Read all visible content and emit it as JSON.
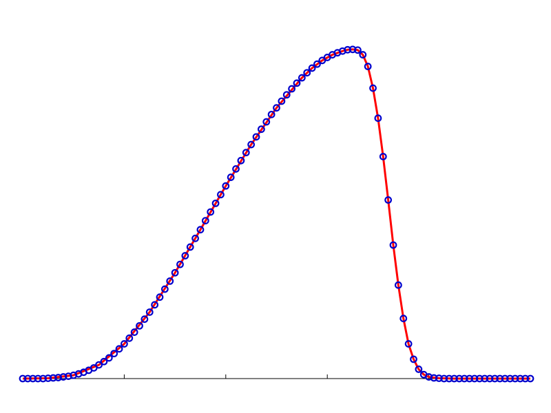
{
  "chart_data": {
    "type": "scatter",
    "title": "",
    "xlabel": "",
    "ylabel": "",
    "xlim": [
      0,
      100
    ],
    "ylim": [
      0,
      1
    ],
    "grid": false,
    "legend": "none",
    "x_ticks": [
      20,
      40,
      60,
      80
    ],
    "series": [
      {
        "style": "markers",
        "marker": "circle",
        "color": "#0000cc",
        "x": [
          0,
          1,
          2,
          3,
          4,
          5,
          6,
          7,
          8,
          9,
          10,
          11,
          12,
          13,
          14,
          15,
          16,
          17,
          18,
          19,
          20,
          21,
          22,
          23,
          24,
          25,
          26,
          27,
          28,
          29,
          30,
          31,
          32,
          33,
          34,
          35,
          36,
          37,
          38,
          39,
          40,
          41,
          42,
          43,
          44,
          45,
          46,
          47,
          48,
          49,
          50,
          51,
          52,
          53,
          54,
          55,
          56,
          57,
          58,
          59,
          60,
          61,
          62,
          63,
          64,
          65,
          66,
          67,
          68,
          69,
          70,
          71,
          72,
          73,
          74,
          75,
          76,
          77,
          78,
          79,
          80,
          81,
          82,
          83,
          84,
          85,
          86,
          87,
          88,
          89,
          90,
          91,
          92,
          93,
          94,
          95,
          96,
          97,
          98,
          99,
          100
        ],
        "y": [
          0,
          0,
          0,
          0,
          0,
          0.001,
          0.002,
          0.003,
          0.005,
          0.007,
          0.01,
          0.014,
          0.019,
          0.025,
          0.032,
          0.041,
          0.051,
          0.062,
          0.075,
          0.089,
          0.104,
          0.121,
          0.139,
          0.158,
          0.178,
          0.199,
          0.221,
          0.244,
          0.268,
          0.292,
          0.317,
          0.342,
          0.368,
          0.394,
          0.42,
          0.446,
          0.473,
          0.499,
          0.525,
          0.551,
          0.577,
          0.603,
          0.628,
          0.653,
          0.677,
          0.701,
          0.724,
          0.747,
          0.769,
          0.791,
          0.811,
          0.831,
          0.85,
          0.868,
          0.885,
          0.901,
          0.916,
          0.93,
          0.942,
          0.953,
          0.962,
          0.97,
          0.976,
          0.981,
          0.985,
          0.986,
          0.984,
          0.97,
          0.935,
          0.87,
          0.78,
          0.665,
          0.535,
          0.4,
          0.28,
          0.18,
          0.104,
          0.058,
          0.028,
          0.012,
          0.005,
          0.002,
          0.001,
          0,
          0,
          0,
          0,
          0,
          0,
          0,
          0,
          0,
          0,
          0,
          0,
          0,
          0,
          0,
          0,
          0,
          0
        ]
      },
      {
        "style": "line",
        "color": "#ff0000",
        "x": [
          0,
          5,
          10,
          15,
          20,
          25,
          30,
          35,
          40,
          45,
          50,
          55,
          57,
          59,
          61,
          63,
          64,
          65,
          66,
          67,
          68,
          69,
          70,
          71,
          72,
          73,
          74,
          75,
          76,
          77,
          78,
          79,
          80,
          82,
          85,
          90,
          95,
          100
        ],
        "y": [
          0,
          0.001,
          0.01,
          0.041,
          0.104,
          0.199,
          0.317,
          0.446,
          0.577,
          0.701,
          0.811,
          0.901,
          0.93,
          0.953,
          0.97,
          0.981,
          0.985,
          0.986,
          0.984,
          0.97,
          0.935,
          0.87,
          0.78,
          0.665,
          0.535,
          0.4,
          0.28,
          0.18,
          0.104,
          0.058,
          0.028,
          0.012,
          0.005,
          0.001,
          0,
          0,
          0,
          0
        ]
      }
    ]
  }
}
